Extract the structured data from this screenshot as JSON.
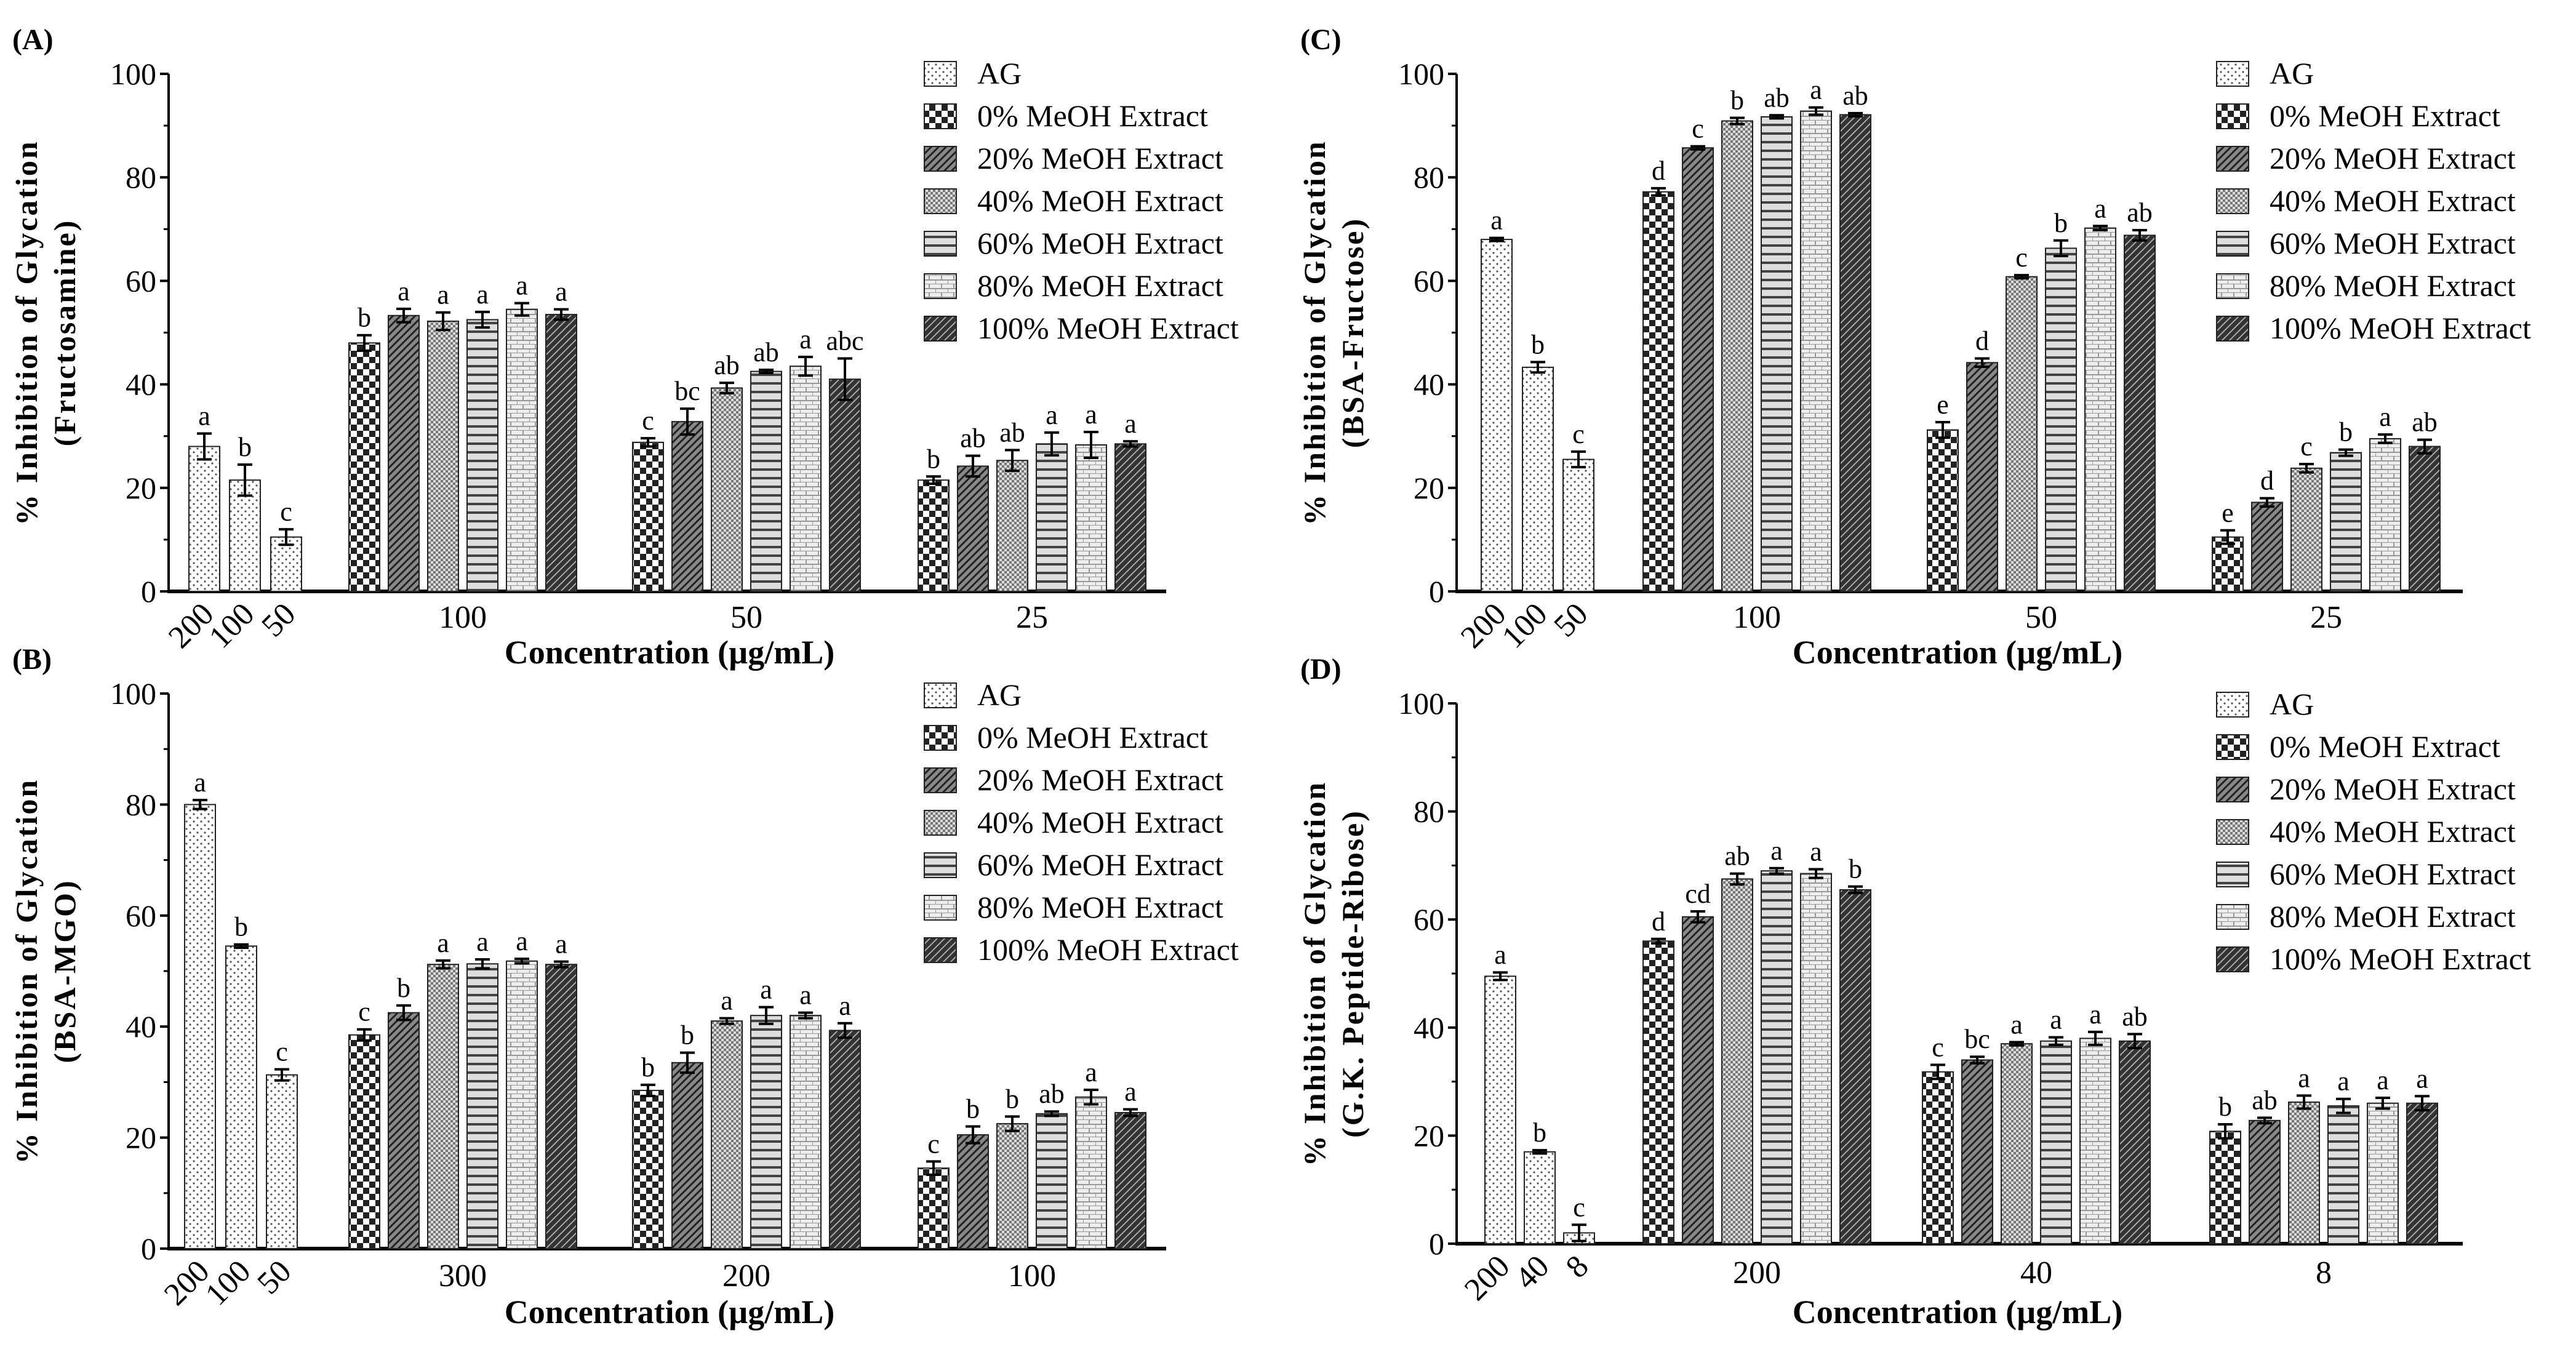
{
  "chart_data": [
    {
      "type": "bar",
      "panel": "(A)",
      "ylabel": [
        "% Inhibition of Glycation",
        "(Fructosamine)"
      ],
      "xlabel": "Concentration (µg/mL)",
      "ylim": [
        0,
        100
      ],
      "yticks": [
        "0",
        "20",
        "40",
        "60",
        "80",
        "100"
      ],
      "legend_position": "top-right",
      "ag": {
        "name": "AG",
        "categories": [
          "200",
          "100",
          "50"
        ],
        "values": [
          28,
          21.5,
          10.5
        ],
        "errors": [
          2.5,
          3,
          1.5
        ],
        "letters": [
          "a",
          "b",
          "c"
        ]
      },
      "categories": [
        "100",
        "50",
        "25"
      ],
      "series": [
        {
          "name": "0% MeOH Extract",
          "values": [
            48,
            28.8,
            21.5
          ],
          "errors": [
            1.5,
            0.8,
            0.7
          ],
          "letters": [
            "b",
            "c",
            "b"
          ]
        },
        {
          "name": "20% MeOH Extract",
          "values": [
            53.3,
            32.8,
            24.2
          ],
          "errors": [
            1.3,
            2.5,
            2
          ],
          "letters": [
            "a",
            "bc",
            "ab"
          ]
        },
        {
          "name": "40% MeOH Extract",
          "values": [
            52.2,
            39.3,
            25.3
          ],
          "errors": [
            1.7,
            1,
            2
          ],
          "letters": [
            "a",
            "ab",
            "ab"
          ]
        },
        {
          "name": "60% MeOH Extract",
          "values": [
            52.5,
            42.5,
            28.5
          ],
          "errors": [
            1.5,
            0.3,
            2.2
          ],
          "letters": [
            "a",
            "ab",
            "a"
          ]
        },
        {
          "name": "80% MeOH Extract",
          "values": [
            54.5,
            43.5,
            28.3
          ],
          "errors": [
            1.2,
            1.8,
            2.5
          ],
          "letters": [
            "a",
            "a",
            "a"
          ]
        },
        {
          "name": "100% MeOH Extract",
          "values": [
            53.5,
            41,
            28.5
          ],
          "errors": [
            1,
            4,
            0.5
          ],
          "letters": [
            "a",
            "abc",
            "a"
          ]
        }
      ]
    },
    {
      "type": "bar",
      "panel": "(B)",
      "ylabel": [
        "% Inhibition of Glycation",
        "(BSA-MGO)"
      ],
      "xlabel": "Concentration (µg/mL)",
      "ylim": [
        0,
        100
      ],
      "yticks": [
        "0",
        "20",
        "40",
        "60",
        "80",
        "100"
      ],
      "legend_position": "top-right",
      "ag": {
        "name": "AG",
        "categories": [
          "200",
          "100",
          "50"
        ],
        "values": [
          80,
          54.5,
          31.3
        ],
        "errors": [
          0.8,
          0.3,
          1
        ],
        "letters": [
          "a",
          "b",
          "c"
        ]
      },
      "categories": [
        "300",
        "200",
        "100"
      ],
      "series": [
        {
          "name": "0% MeOH Extract",
          "values": [
            38.5,
            28.5,
            14.5
          ],
          "errors": [
            1,
            1,
            1.2
          ],
          "letters": [
            "c",
            "b",
            "c"
          ]
        },
        {
          "name": "20% MeOH Extract",
          "values": [
            42.5,
            33.5,
            20.5
          ],
          "errors": [
            1.3,
            1.8,
            1.5
          ],
          "letters": [
            "b",
            "b",
            "b"
          ]
        },
        {
          "name": "40% MeOH Extract",
          "values": [
            51.2,
            41,
            22.5
          ],
          "errors": [
            0.7,
            0.5,
            1.3
          ],
          "letters": [
            "a",
            "a",
            "b"
          ]
        },
        {
          "name": "60% MeOH Extract",
          "values": [
            51.3,
            42,
            24.3
          ],
          "errors": [
            0.8,
            1.5,
            0.4
          ],
          "letters": [
            "a",
            "a",
            "ab"
          ]
        },
        {
          "name": "80% MeOH Extract",
          "values": [
            51.8,
            42,
            27.3
          ],
          "errors": [
            0.4,
            0.5,
            1.3
          ],
          "letters": [
            "a",
            "a",
            "a"
          ]
        },
        {
          "name": "100% MeOH Extract",
          "values": [
            51.2,
            39.3,
            24.5
          ],
          "errors": [
            0.5,
            1.3,
            0.6
          ],
          "letters": [
            "a",
            "a",
            "a"
          ]
        }
      ]
    },
    {
      "type": "bar",
      "panel": "(C)",
      "ylabel": [
        "% Inhibition of Glycation",
        "(BSA-Fructose)"
      ],
      "xlabel": "Concentration (µg/mL)",
      "ylim": [
        0,
        100
      ],
      "yticks": [
        "0",
        "20",
        "40",
        "60",
        "80",
        "100"
      ],
      "legend_position": "top-right",
      "ag": {
        "name": "AG",
        "categories": [
          "200",
          "100",
          "50"
        ],
        "values": [
          68,
          43.3,
          25.5
        ],
        "errors": [
          0.3,
          1,
          1.5
        ],
        "letters": [
          "a",
          "b",
          "c"
        ]
      },
      "categories": [
        "100",
        "50",
        "25"
      ],
      "series": [
        {
          "name": "0% MeOH Extract",
          "values": [
            77.2,
            31.2,
            10.5
          ],
          "errors": [
            0.7,
            1.5,
            1.3
          ],
          "letters": [
            "d",
            "e",
            "e"
          ]
        },
        {
          "name": "20% MeOH Extract",
          "values": [
            85.7,
            44.2,
            17.2
          ],
          "errors": [
            0.3,
            0.8,
            0.8
          ],
          "letters": [
            "c",
            "d",
            "d"
          ]
        },
        {
          "name": "40% MeOH Extract",
          "values": [
            90.9,
            60.8,
            23.8
          ],
          "errors": [
            0.6,
            0.3,
            0.8
          ],
          "letters": [
            "b",
            "c",
            "c"
          ]
        },
        {
          "name": "60% MeOH Extract",
          "values": [
            91.7,
            66.3,
            26.8
          ],
          "errors": [
            0.3,
            1.5,
            0.6
          ],
          "letters": [
            "ab",
            "b",
            "b"
          ]
        },
        {
          "name": "80% MeOH Extract",
          "values": [
            92.8,
            70.2,
            29.5
          ],
          "errors": [
            0.7,
            0.4,
            0.8
          ],
          "letters": [
            "a",
            "a",
            "a"
          ]
        },
        {
          "name": "100% MeOH Extract",
          "values": [
            92.1,
            68.8,
            28
          ],
          "errors": [
            0.3,
            1,
            1.3
          ],
          "letters": [
            "ab",
            "ab",
            "ab"
          ]
        }
      ]
    },
    {
      "type": "bar",
      "panel": "(D)",
      "ylabel": [
        "% Inhibition of Glycation",
        "(G.K. Peptide-Ribose)"
      ],
      "xlabel": "Concentration (µg/mL)",
      "ylim": [
        0,
        100
      ],
      "yticks": [
        "0",
        "20",
        "40",
        "60",
        "80",
        "100"
      ],
      "legend_position": "top-right",
      "ag": {
        "name": "AG",
        "categories": [
          "200",
          "40",
          "8"
        ],
        "values": [
          49.5,
          17,
          2
        ],
        "errors": [
          0.7,
          0.3,
          1.5
        ],
        "letters": [
          "a",
          "b",
          "c"
        ]
      },
      "categories": [
        "200",
        "40",
        "8"
      ],
      "series": [
        {
          "name": "0% MeOH Extract",
          "values": [
            56,
            31.8,
            20.8
          ],
          "errors": [
            0.4,
            1.3,
            1.3
          ],
          "letters": [
            "d",
            "c",
            "b"
          ]
        },
        {
          "name": "20% MeOH Extract",
          "values": [
            60.5,
            34,
            22.8
          ],
          "errors": [
            1,
            0.6,
            0.5
          ],
          "letters": [
            "cd",
            "bc",
            "ab"
          ]
        },
        {
          "name": "40% MeOH Extract",
          "values": [
            67.5,
            37,
            26.2
          ],
          "errors": [
            1,
            0.3,
            1.2
          ],
          "letters": [
            "ab",
            "a",
            "a"
          ]
        },
        {
          "name": "60% MeOH Extract",
          "values": [
            69,
            37.5,
            25.5
          ],
          "errors": [
            0.5,
            0.7,
            1.3
          ],
          "letters": [
            "a",
            "a",
            "a"
          ]
        },
        {
          "name": "80% MeOH Extract",
          "values": [
            68.5,
            38,
            26
          ],
          "errors": [
            0.8,
            1.2,
            1
          ],
          "letters": [
            "a",
            "a",
            "a"
          ]
        },
        {
          "name": "100% MeOH Extract",
          "values": [
            65.5,
            37.5,
            26
          ],
          "errors": [
            0.6,
            1.3,
            1.3
          ],
          "letters": [
            "b",
            "ab",
            "a"
          ]
        }
      ]
    }
  ]
}
